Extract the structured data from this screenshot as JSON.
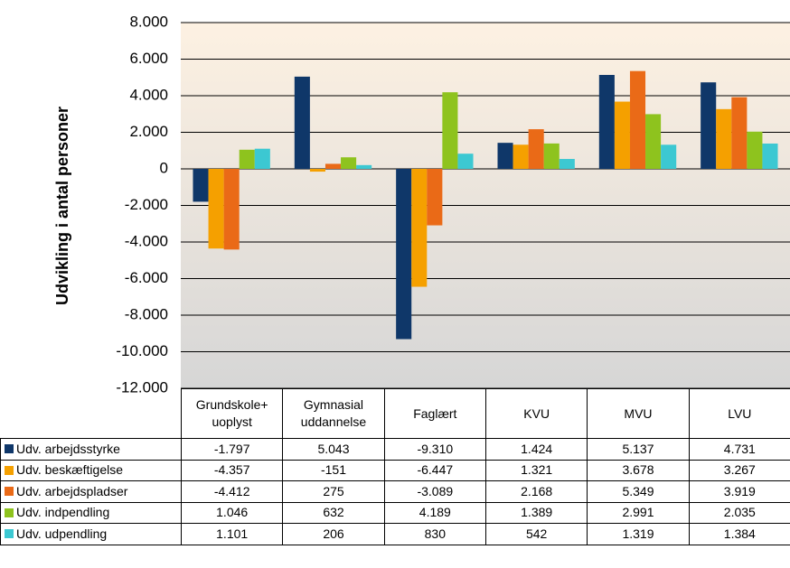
{
  "chart_data": {
    "type": "bar",
    "y_label": "Udvikling i antal personer",
    "categories": [
      "Grundskole+\nuoplyst",
      "Gymnasial\nuddannelse",
      "Faglært",
      "KVU",
      "MVU",
      "LVU"
    ],
    "series": [
      {
        "name": "Udv. arbejdsstyrke",
        "color": "#0f3769",
        "values": [
          -1797,
          5043,
          -9310,
          1424,
          5137,
          4731
        ],
        "value_labels": [
          "-1.797",
          "5.043",
          "-9.310",
          "1.424",
          "5.137",
          "4.731"
        ]
      },
      {
        "name": "Udv. beskæftigelse",
        "color": "#f5a000",
        "values": [
          -4357,
          -151,
          -6447,
          1321,
          3678,
          3267
        ],
        "value_labels": [
          "-4.357",
          "-151",
          "-6.447",
          "1.321",
          "3.678",
          "3.267"
        ]
      },
      {
        "name": "Udv. arbejdspladser",
        "color": "#ea6a17",
        "values": [
          -4412,
          275,
          -3089,
          2168,
          5349,
          3919
        ],
        "value_labels": [
          "-4.412",
          "275",
          "-3.089",
          "2.168",
          "5.349",
          "3.919"
        ]
      },
      {
        "name": "Udv. indpendling",
        "color": "#8ec31e",
        "values": [
          1046,
          632,
          4189,
          1389,
          2991,
          2035
        ],
        "value_labels": [
          "1.046",
          "632",
          "4.189",
          "1.389",
          "2.991",
          "2.035"
        ]
      },
      {
        "name": "Udv. udpendling",
        "color": "#3cc8d2",
        "values": [
          1101,
          206,
          830,
          542,
          1319,
          1384
        ],
        "value_labels": [
          "1.101",
          "206",
          "830",
          "542",
          "1.319",
          "1.384"
        ]
      }
    ],
    "ylim": [
      -12000,
      8000
    ],
    "yticks": [
      {
        "value": -12000,
        "label": "-12.000"
      },
      {
        "value": -10000,
        "label": "-10.000"
      },
      {
        "value": -8000,
        "label": "-8.000"
      },
      {
        "value": -6000,
        "label": "-6.000"
      },
      {
        "value": -4000,
        "label": "-4.000"
      },
      {
        "value": -2000,
        "label": "-2.000"
      },
      0,
      {
        "value": 2000,
        "label": "2.000"
      },
      {
        "value": 4000,
        "label": "4.000"
      },
      {
        "value": 6000,
        "label": "6.000"
      },
      {
        "value": 8000,
        "label": "8.000"
      }
    ],
    "grid": true
  }
}
